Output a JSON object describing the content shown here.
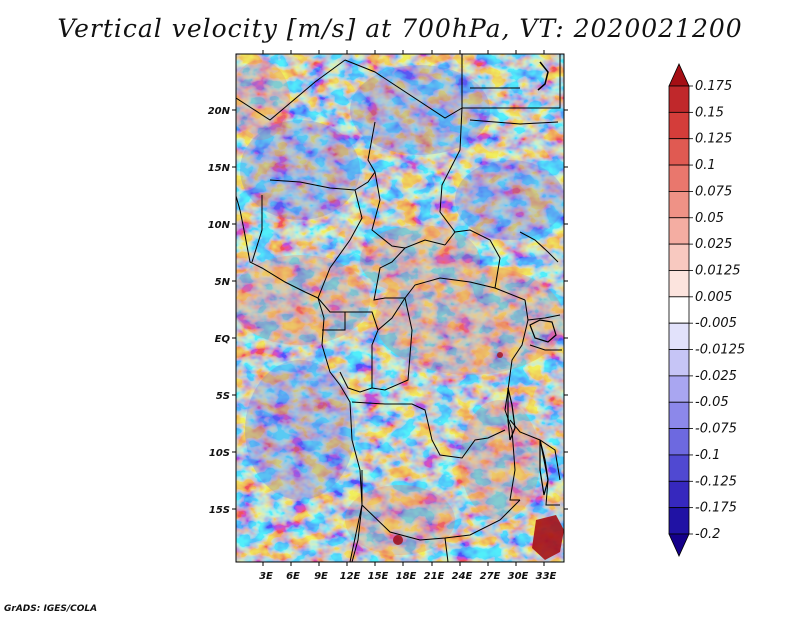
{
  "title": "Vertical velocity [m/s] at 700hPa, VT: 2020021200",
  "footer": "GrADS: IGES/COLA",
  "map": {
    "lat_labels": [
      "20N",
      "15N",
      "10N",
      "5N",
      "EQ",
      "5S",
      "10S",
      "15S"
    ],
    "lon_labels": [
      "3E",
      "6E",
      "9E",
      "12E",
      "15E",
      "18E",
      "21E",
      "24E",
      "27E",
      "30E",
      "33E"
    ]
  },
  "colorbar": {
    "labels": [
      "0.175",
      "0.15",
      "0.125",
      "0.1",
      "0.075",
      "0.05",
      "0.025",
      "0.0125",
      "0.005",
      "-0.005",
      "-0.0125",
      "-0.025",
      "-0.05",
      "-0.075",
      "-0.1",
      "-0.125",
      "-0.175",
      "-0.2"
    ],
    "colors": [
      "#a50f15",
      "#c0282b",
      "#d43d3a",
      "#e05a52",
      "#e9776d",
      "#ef9286",
      "#f4ada2",
      "#f8c9c0",
      "#fce4de",
      "#ffffff",
      "#e2e2fb",
      "#c6c5f6",
      "#a9a6f1",
      "#8c88ea",
      "#6d69e0",
      "#5049d2",
      "#3628be",
      "#2012a4",
      "#14008a"
    ]
  }
}
